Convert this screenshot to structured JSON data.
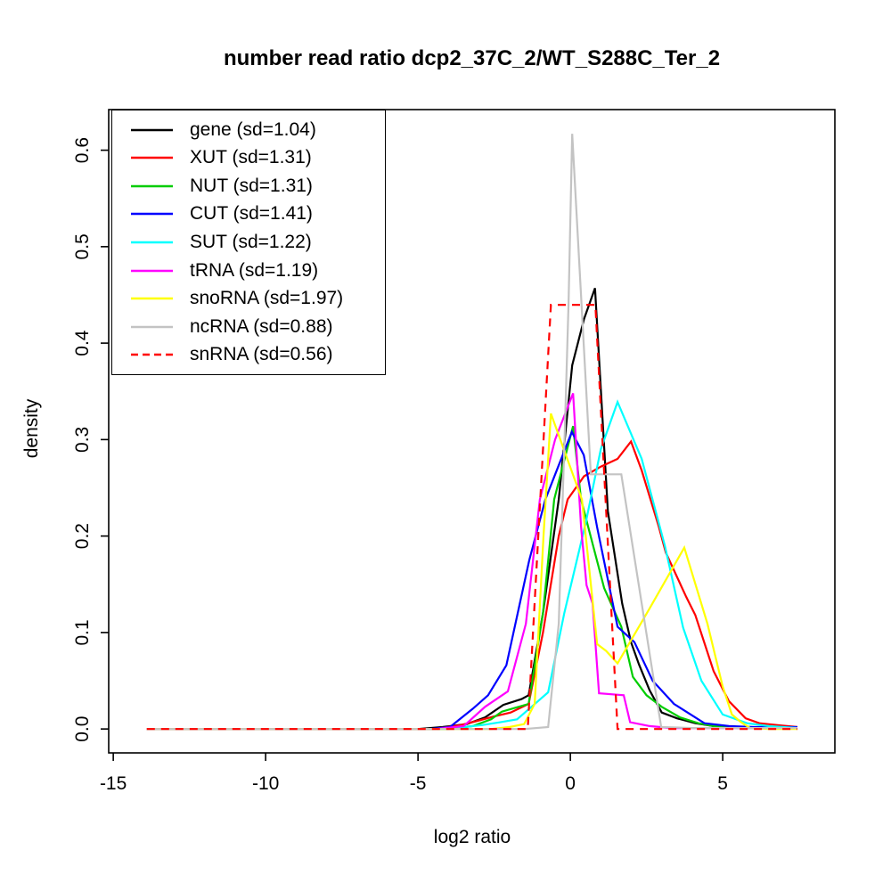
{
  "chart_data": {
    "type": "line",
    "title": "number read ratio dcp2_37C_2/WT_S288C_Ter_2",
    "xlabel": "log2 ratio",
    "ylabel": "density",
    "grid": false,
    "legend_position": "top-left",
    "xlim": [
      -15.15,
      8.68
    ],
    "ylim": [
      -0.0248,
      0.6421
    ],
    "x_ticks": [
      {
        "v": -15,
        "label": "-15"
      },
      {
        "v": -10,
        "label": "-10"
      },
      {
        "v": -5,
        "label": "-5"
      },
      {
        "v": 0,
        "label": "0"
      },
      {
        "v": 5,
        "label": "5"
      }
    ],
    "y_ticks": [
      {
        "v": 0.0,
        "label": "0.0"
      },
      {
        "v": 0.1,
        "label": "0.1"
      },
      {
        "v": 0.2,
        "label": "0.2"
      },
      {
        "v": 0.3,
        "label": "0.3"
      },
      {
        "v": 0.4,
        "label": "0.4"
      },
      {
        "v": 0.5,
        "label": "0.5"
      },
      {
        "v": 0.6,
        "label": "0.6"
      }
    ],
    "series": [
      {
        "name": "gene",
        "legend_label": "gene (sd=1.04)",
        "color": "#000000",
        "dash": "solid",
        "points": [
          [
            -13.9,
            0
          ],
          [
            -5.0,
            0
          ],
          [
            -4.2,
            0.002
          ],
          [
            -3.4,
            0.005
          ],
          [
            -2.8,
            0.012
          ],
          [
            -2.2,
            0.025
          ],
          [
            -1.6,
            0.031
          ],
          [
            -1.37,
            0.035
          ],
          [
            -0.9,
            0.12
          ],
          [
            -0.38,
            0.238
          ],
          [
            0.06,
            0.377
          ],
          [
            0.45,
            0.425
          ],
          [
            0.81,
            0.457
          ],
          [
            1.23,
            0.226
          ],
          [
            1.7,
            0.13
          ],
          [
            1.99,
            0.09
          ],
          [
            2.25,
            0.067
          ],
          [
            2.6,
            0.04
          ],
          [
            3.0,
            0.017
          ],
          [
            3.5,
            0.011
          ],
          [
            4.1,
            0.006
          ],
          [
            4.7,
            0.003
          ],
          [
            5.5,
            0.002
          ],
          [
            6.5,
            0.001
          ],
          [
            7.45,
            0.001
          ]
        ]
      },
      {
        "name": "XUT",
        "legend_label": "XUT (sd=1.31)",
        "color": "#FF0000",
        "dash": "solid",
        "points": [
          [
            -13.9,
            0
          ],
          [
            -4.5,
            0
          ],
          [
            -3.6,
            0.004
          ],
          [
            -3.1,
            0.008
          ],
          [
            -2.5,
            0.013
          ],
          [
            -1.96,
            0.017
          ],
          [
            -1.37,
            0.026
          ],
          [
            -0.9,
            0.1
          ],
          [
            -0.38,
            0.2
          ],
          [
            -0.09,
            0.238
          ],
          [
            0.45,
            0.262
          ],
          [
            1.0,
            0.272
          ],
          [
            1.55,
            0.28
          ],
          [
            1.99,
            0.298
          ],
          [
            2.34,
            0.268
          ],
          [
            2.9,
            0.21
          ],
          [
            3.13,
            0.183
          ],
          [
            3.8,
            0.137
          ],
          [
            4.1,
            0.118
          ],
          [
            4.7,
            0.06
          ],
          [
            5.2,
            0.029
          ],
          [
            5.75,
            0.011
          ],
          [
            6.2,
            0.006
          ],
          [
            6.8,
            0.004
          ],
          [
            7.45,
            0.002
          ]
        ]
      },
      {
        "name": "NUT",
        "legend_label": "NUT (sd=1.31)",
        "color": "#00CD00",
        "dash": "solid",
        "points": [
          [
            -13.9,
            0
          ],
          [
            -4.0,
            0
          ],
          [
            -3.2,
            0.003
          ],
          [
            -2.6,
            0.01
          ],
          [
            -2.25,
            0.018
          ],
          [
            -1.37,
            0.026
          ],
          [
            -0.9,
            0.12
          ],
          [
            -0.53,
            0.238
          ],
          [
            0.09,
            0.314
          ],
          [
            0.35,
            0.238
          ],
          [
            1.11,
            0.146
          ],
          [
            1.67,
            0.106
          ],
          [
            2.05,
            0.054
          ],
          [
            2.5,
            0.035
          ],
          [
            3.0,
            0.023
          ],
          [
            3.6,
            0.012
          ],
          [
            4.2,
            0.006
          ],
          [
            4.7,
            0.003
          ],
          [
            5.5,
            0.001
          ],
          [
            7.45,
            0.001
          ]
        ]
      },
      {
        "name": "CUT",
        "legend_label": "CUT (sd=1.41)",
        "color": "#0000FF",
        "dash": "solid",
        "points": [
          [
            -13.9,
            0
          ],
          [
            -4.6,
            0
          ],
          [
            -3.95,
            0.002
          ],
          [
            -3.2,
            0.021
          ],
          [
            -2.7,
            0.035
          ],
          [
            -2.1,
            0.066
          ],
          [
            -1.35,
            0.175
          ],
          [
            -0.82,
            0.238
          ],
          [
            -0.4,
            0.272
          ],
          [
            0.05,
            0.308
          ],
          [
            0.44,
            0.284
          ],
          [
            0.88,
            0.209
          ],
          [
            1.55,
            0.106
          ],
          [
            2.1,
            0.09
          ],
          [
            2.7,
            0.05
          ],
          [
            3.4,
            0.026
          ],
          [
            4.4,
            0.006
          ],
          [
            5.2,
            0.003
          ],
          [
            6.0,
            0.002
          ],
          [
            7.45,
            0.002
          ]
        ]
      },
      {
        "name": "SUT",
        "legend_label": "SUT (sd=1.22)",
        "color": "#00FFFF",
        "dash": "solid",
        "points": [
          [
            -13.9,
            0
          ],
          [
            -4.3,
            0
          ],
          [
            -3.5,
            0.002
          ],
          [
            -2.9,
            0.004
          ],
          [
            -2.3,
            0.007
          ],
          [
            -1.75,
            0.01
          ],
          [
            -1.2,
            0.025
          ],
          [
            -0.73,
            0.038
          ],
          [
            -0.2,
            0.12
          ],
          [
            0.5,
            0.213
          ],
          [
            1.0,
            0.29
          ],
          [
            1.55,
            0.339
          ],
          [
            2.34,
            0.28
          ],
          [
            3.1,
            0.19
          ],
          [
            3.7,
            0.105
          ],
          [
            4.3,
            0.05
          ],
          [
            5.0,
            0.015
          ],
          [
            5.8,
            0.006
          ],
          [
            6.5,
            0.003
          ],
          [
            7.45,
            0.001
          ]
        ]
      },
      {
        "name": "tRNA",
        "legend_label": "tRNA (sd=1.19)",
        "color": "#FF00FF",
        "dash": "solid",
        "points": [
          [
            -13.9,
            0
          ],
          [
            -4.4,
            0
          ],
          [
            -3.5,
            0.003
          ],
          [
            -2.8,
            0.023
          ],
          [
            -2.05,
            0.039
          ],
          [
            -1.46,
            0.109
          ],
          [
            -1.0,
            0.238
          ],
          [
            -0.5,
            0.3
          ],
          [
            0.09,
            0.348
          ],
          [
            0.35,
            0.21
          ],
          [
            0.53,
            0.149
          ],
          [
            0.73,
            0.13
          ],
          [
            0.94,
            0.037
          ],
          [
            1.75,
            0.035
          ],
          [
            1.96,
            0.007
          ],
          [
            2.6,
            0.003
          ],
          [
            3.3,
            0.001
          ],
          [
            7.45,
            0.001
          ]
        ]
      },
      {
        "name": "snoRNA",
        "legend_label": "snoRNA (sd=1.97)",
        "color": "#FFFF00",
        "dash": "solid",
        "points": [
          [
            -13.9,
            0
          ],
          [
            -2.6,
            0
          ],
          [
            -2.0,
            0.002
          ],
          [
            -1.52,
            0.005
          ],
          [
            -1.17,
            0.026
          ],
          [
            -0.88,
            0.2
          ],
          [
            -0.64,
            0.327
          ],
          [
            0.38,
            0.238
          ],
          [
            0.88,
            0.088
          ],
          [
            1.17,
            0.081
          ],
          [
            1.55,
            0.068
          ],
          [
            2.6,
            0.125
          ],
          [
            3.74,
            0.188
          ],
          [
            4.5,
            0.109
          ],
          [
            5.0,
            0.044
          ],
          [
            5.3,
            0.015
          ],
          [
            5.6,
            0.007
          ],
          [
            5.9,
            0.001
          ],
          [
            6.5,
            0
          ],
          [
            7.45,
            0
          ]
        ]
      },
      {
        "name": "ncRNA",
        "legend_label": "ncRNA (sd=0.88)",
        "color": "#C3C3C3",
        "dash": "solid",
        "points": [
          [
            -13.9,
            0
          ],
          [
            -1.5,
            0
          ],
          [
            -0.73,
            0.002
          ],
          [
            -0.38,
            0.109
          ],
          [
            -0.18,
            0.312
          ],
          [
            -0.06,
            0.441
          ],
          [
            0.06,
            0.617
          ],
          [
            0.67,
            0.264
          ],
          [
            1.67,
            0.264
          ],
          [
            2.98,
            0.002
          ],
          [
            4.0,
            0.001
          ],
          [
            7.45,
            0.001
          ]
        ]
      },
      {
        "name": "snRNA",
        "legend_label": "snRNA (sd=0.56)",
        "color": "#FF0000",
        "dash": "dashed",
        "points": [
          [
            -13.9,
            0
          ],
          [
            -1.4,
            0
          ],
          [
            -0.64,
            0.4397
          ],
          [
            0.82,
            0.4397
          ],
          [
            1.55,
            0
          ],
          [
            7.45,
            0
          ]
        ]
      }
    ]
  }
}
